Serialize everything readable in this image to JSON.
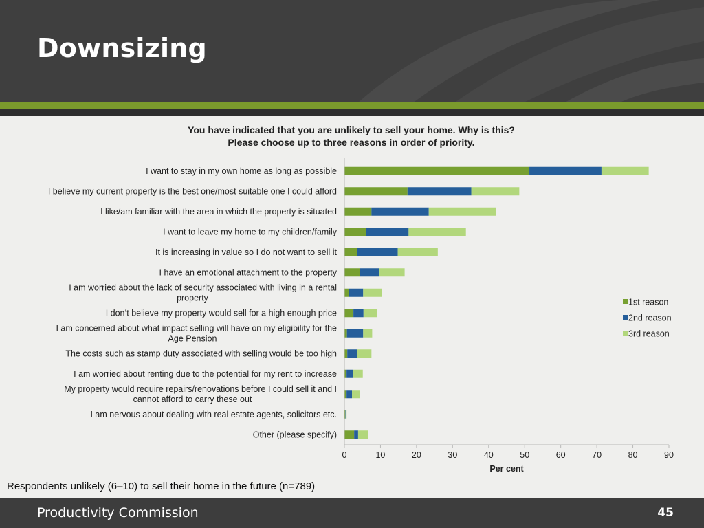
{
  "slide": {
    "title": "Downsizing",
    "footnote": "Respondents unlikely (6–10) to sell their home in the future (n=789)",
    "organization": "Productivity Commission",
    "page_number": "45"
  },
  "chart_data": {
    "type": "bar",
    "orientation": "horizontal",
    "stacked": true,
    "title_lines": [
      "You have indicated that you are unlikely to sell your home. Why is this?",
      "Please choose up to three reasons in order of priority."
    ],
    "xlabel": "Per cent",
    "xlim": [
      0,
      90
    ],
    "xticks": [
      0,
      10,
      20,
      30,
      40,
      50,
      60,
      70,
      80,
      90
    ],
    "legend_position": "right",
    "grid": false,
    "categories": [
      [
        "I want to stay in my own home as long as possible"
      ],
      [
        "I believe my current property is the best one/most suitable one I could afford"
      ],
      [
        "I like/am familiar with the area in which the property is situated"
      ],
      [
        "I want to leave my home to my children/family"
      ],
      [
        "It is increasing in value so I do not want to sell it"
      ],
      [
        "I have an emotional attachment to the property"
      ],
      [
        "I am worried about the lack of security associated with living in a rental",
        "property"
      ],
      [
        "I don’t believe my property would sell for a high enough price"
      ],
      [
        "I am concerned about what impact selling will have on my eligibility for the",
        "Age Pension"
      ],
      [
        "The costs such as stamp duty associated with selling would be too high"
      ],
      [
        "I am worried about renting due to the potential for my rent to increase"
      ],
      [
        "My property would require repairs/renovations before I could sell it and I",
        "cannot afford to carry these out"
      ],
      [
        "I am nervous about dealing with real estate agents, solicitors etc."
      ],
      [
        "Other (please specify)"
      ]
    ],
    "series": [
      {
        "name": "1st reason",
        "color": "#77a031",
        "values": [
          51.3,
          17.5,
          7.5,
          6.0,
          3.5,
          4.2,
          1.3,
          2.5,
          0.7,
          0.8,
          0.6,
          0.6,
          0.2,
          2.7
        ]
      },
      {
        "name": "2nd reason",
        "color": "#255e9a",
        "values": [
          20.0,
          17.7,
          15.9,
          11.8,
          11.3,
          5.5,
          3.9,
          2.8,
          4.5,
          2.7,
          1.8,
          1.5,
          0.1,
          1.1
        ]
      },
      {
        "name": "3rd reason",
        "color": "#b2d77c",
        "values": [
          13.1,
          13.3,
          18.6,
          15.9,
          11.1,
          7.0,
          5.1,
          3.8,
          2.5,
          4.0,
          2.7,
          2.1,
          0.3,
          2.8
        ]
      }
    ]
  }
}
